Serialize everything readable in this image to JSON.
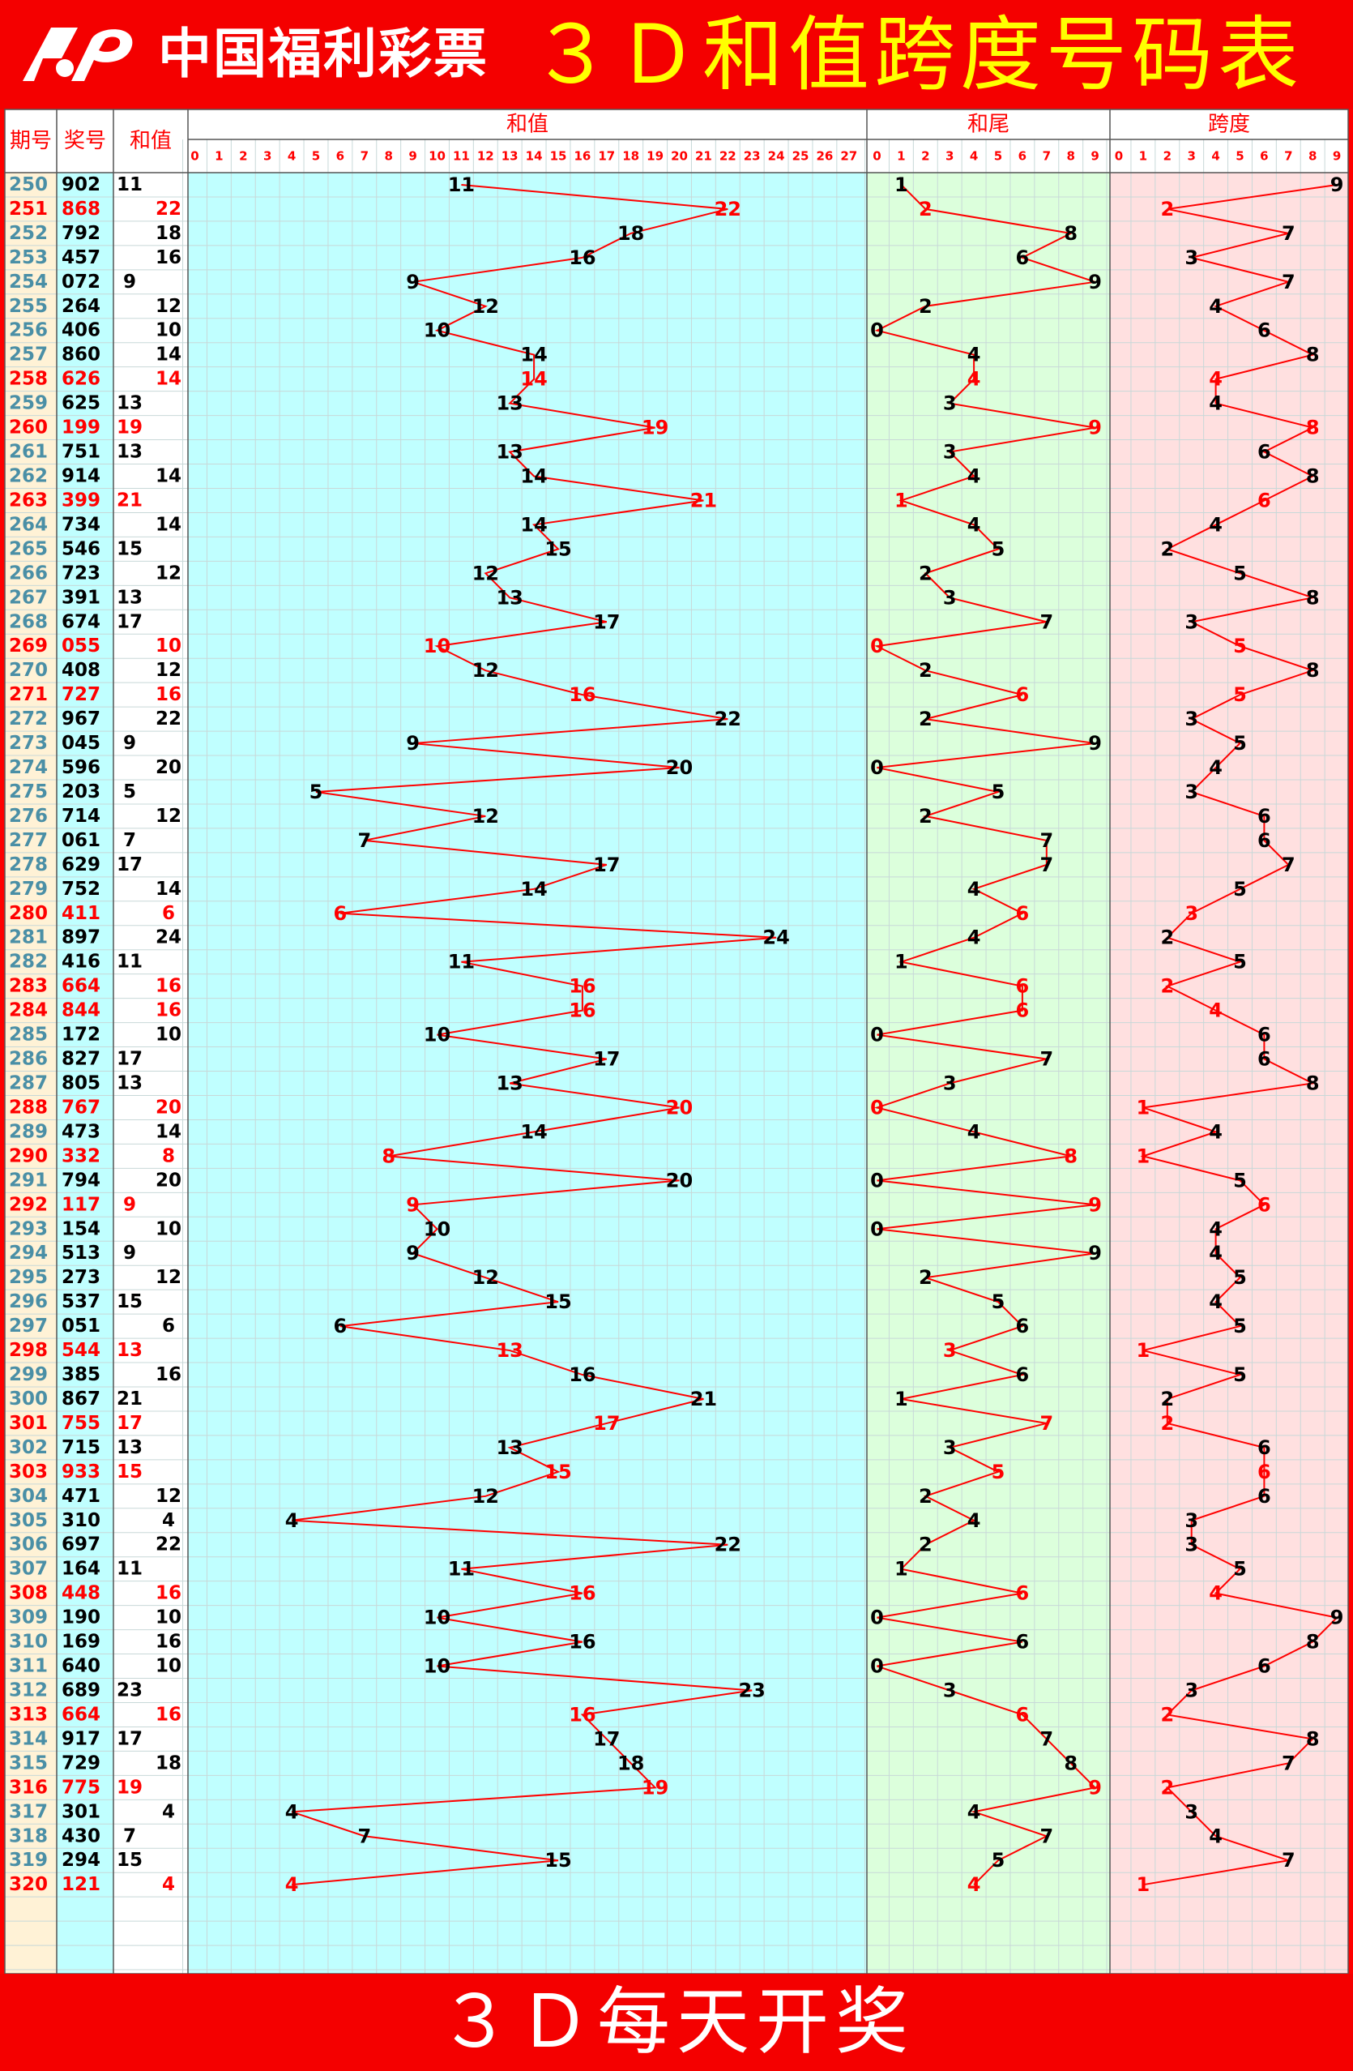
{
  "header": {
    "brand": "中国福利彩票",
    "title": "３Ｄ和值跨度号码表"
  },
  "footer": {
    "text": "３Ｄ每天开奖"
  },
  "columns": {
    "issue": "期号",
    "number": "奖号",
    "sum": "和值",
    "sum_section": "和值",
    "tail_section": "和尾",
    "span_section": "跨度"
  },
  "colors": {
    "highlight": "#ff0000",
    "normal": "#000000",
    "issue_text": "#4a8fa6",
    "sum_bg": "#c0ffff",
    "tail_bg": "#dcffdc",
    "span_bg": "#ffe0e0",
    "issue_bg": "#fff2d6",
    "line": "#ff0000"
  },
  "chart_data": {
    "type": "table",
    "sum_axis": [
      "0",
      "1",
      "2",
      "3",
      "4",
      "5",
      "6",
      "7",
      "8",
      "9",
      "10",
      "11",
      "12",
      "13",
      "14",
      "15",
      "16",
      "17",
      "18",
      "19",
      "20",
      "21",
      "22",
      "23",
      "24",
      "25",
      "26",
      "27"
    ],
    "tail_axis": [
      "0",
      "1",
      "2",
      "3",
      "4",
      "5",
      "6",
      "7",
      "8",
      "9"
    ],
    "span_axis": [
      "0",
      "1",
      "2",
      "3",
      "4",
      "5",
      "6",
      "7",
      "8",
      "9"
    ],
    "rows": [
      {
        "issue": "250",
        "number": "902",
        "sum": 11,
        "tail": 1,
        "span": 9,
        "highlight": false
      },
      {
        "issue": "251",
        "number": "868",
        "sum": 22,
        "tail": 2,
        "span": 2,
        "highlight": true
      },
      {
        "issue": "252",
        "number": "792",
        "sum": 18,
        "tail": 8,
        "span": 7,
        "highlight": false
      },
      {
        "issue": "253",
        "number": "457",
        "sum": 16,
        "tail": 6,
        "span": 3,
        "highlight": false
      },
      {
        "issue": "254",
        "number": "072",
        "sum": 9,
        "tail": 9,
        "span": 7,
        "highlight": false
      },
      {
        "issue": "255",
        "number": "264",
        "sum": 12,
        "tail": 2,
        "span": 4,
        "highlight": false
      },
      {
        "issue": "256",
        "number": "406",
        "sum": 10,
        "tail": 0,
        "span": 6,
        "highlight": false
      },
      {
        "issue": "257",
        "number": "860",
        "sum": 14,
        "tail": 4,
        "span": 8,
        "highlight": false
      },
      {
        "issue": "258",
        "number": "626",
        "sum": 14,
        "tail": 4,
        "span": 4,
        "highlight": true
      },
      {
        "issue": "259",
        "number": "625",
        "sum": 13,
        "tail": 3,
        "span": 4,
        "highlight": false
      },
      {
        "issue": "260",
        "number": "199",
        "sum": 19,
        "tail": 9,
        "span": 8,
        "highlight": true
      },
      {
        "issue": "261",
        "number": "751",
        "sum": 13,
        "tail": 3,
        "span": 6,
        "highlight": false
      },
      {
        "issue": "262",
        "number": "914",
        "sum": 14,
        "tail": 4,
        "span": 8,
        "highlight": false
      },
      {
        "issue": "263",
        "number": "399",
        "sum": 21,
        "tail": 1,
        "span": 6,
        "highlight": true
      },
      {
        "issue": "264",
        "number": "734",
        "sum": 14,
        "tail": 4,
        "span": 4,
        "highlight": false
      },
      {
        "issue": "265",
        "number": "546",
        "sum": 15,
        "tail": 5,
        "span": 2,
        "highlight": false
      },
      {
        "issue": "266",
        "number": "723",
        "sum": 12,
        "tail": 2,
        "span": 5,
        "highlight": false
      },
      {
        "issue": "267",
        "number": "391",
        "sum": 13,
        "tail": 3,
        "span": 8,
        "highlight": false
      },
      {
        "issue": "268",
        "number": "674",
        "sum": 17,
        "tail": 7,
        "span": 3,
        "highlight": false
      },
      {
        "issue": "269",
        "number": "055",
        "sum": 10,
        "tail": 0,
        "span": 5,
        "highlight": true
      },
      {
        "issue": "270",
        "number": "408",
        "sum": 12,
        "tail": 2,
        "span": 8,
        "highlight": false
      },
      {
        "issue": "271",
        "number": "727",
        "sum": 16,
        "tail": 6,
        "span": 5,
        "highlight": true
      },
      {
        "issue": "272",
        "number": "967",
        "sum": 22,
        "tail": 2,
        "span": 3,
        "highlight": false
      },
      {
        "issue": "273",
        "number": "045",
        "sum": 9,
        "tail": 9,
        "span": 5,
        "highlight": false
      },
      {
        "issue": "274",
        "number": "596",
        "sum": 20,
        "tail": 0,
        "span": 4,
        "highlight": false
      },
      {
        "issue": "275",
        "number": "203",
        "sum": 5,
        "tail": 5,
        "span": 3,
        "highlight": false
      },
      {
        "issue": "276",
        "number": "714",
        "sum": 12,
        "tail": 2,
        "span": 6,
        "highlight": false
      },
      {
        "issue": "277",
        "number": "061",
        "sum": 7,
        "tail": 7,
        "span": 6,
        "highlight": false
      },
      {
        "issue": "278",
        "number": "629",
        "sum": 17,
        "tail": 7,
        "span": 7,
        "highlight": false
      },
      {
        "issue": "279",
        "number": "752",
        "sum": 14,
        "tail": 4,
        "span": 5,
        "highlight": false
      },
      {
        "issue": "280",
        "number": "411",
        "sum": 6,
        "tail": 6,
        "span": 3,
        "highlight": true
      },
      {
        "issue": "281",
        "number": "897",
        "sum": 24,
        "tail": 4,
        "span": 2,
        "highlight": false
      },
      {
        "issue": "282",
        "number": "416",
        "sum": 11,
        "tail": 1,
        "span": 5,
        "highlight": false
      },
      {
        "issue": "283",
        "number": "664",
        "sum": 16,
        "tail": 6,
        "span": 2,
        "highlight": true
      },
      {
        "issue": "284",
        "number": "844",
        "sum": 16,
        "tail": 6,
        "span": 4,
        "highlight": true
      },
      {
        "issue": "285",
        "number": "172",
        "sum": 10,
        "tail": 0,
        "span": 6,
        "highlight": false
      },
      {
        "issue": "286",
        "number": "827",
        "sum": 17,
        "tail": 7,
        "span": 6,
        "highlight": false
      },
      {
        "issue": "287",
        "number": "805",
        "sum": 13,
        "tail": 3,
        "span": 8,
        "highlight": false
      },
      {
        "issue": "288",
        "number": "767",
        "sum": 20,
        "tail": 0,
        "span": 1,
        "highlight": true
      },
      {
        "issue": "289",
        "number": "473",
        "sum": 14,
        "tail": 4,
        "span": 4,
        "highlight": false
      },
      {
        "issue": "290",
        "number": "332",
        "sum": 8,
        "tail": 8,
        "span": 1,
        "highlight": true
      },
      {
        "issue": "291",
        "number": "794",
        "sum": 20,
        "tail": 0,
        "span": 5,
        "highlight": false
      },
      {
        "issue": "292",
        "number": "117",
        "sum": 9,
        "tail": 9,
        "span": 6,
        "highlight": true
      },
      {
        "issue": "293",
        "number": "154",
        "sum": 10,
        "tail": 0,
        "span": 4,
        "highlight": false
      },
      {
        "issue": "294",
        "number": "513",
        "sum": 9,
        "tail": 9,
        "span": 4,
        "highlight": false
      },
      {
        "issue": "295",
        "number": "273",
        "sum": 12,
        "tail": 2,
        "span": 5,
        "highlight": false
      },
      {
        "issue": "296",
        "number": "537",
        "sum": 15,
        "tail": 5,
        "span": 4,
        "highlight": false
      },
      {
        "issue": "297",
        "number": "051",
        "sum": 6,
        "tail": 6,
        "span": 5,
        "highlight": false
      },
      {
        "issue": "298",
        "number": "544",
        "sum": 13,
        "tail": 3,
        "span": 1,
        "highlight": true
      },
      {
        "issue": "299",
        "number": "385",
        "sum": 16,
        "tail": 6,
        "span": 5,
        "highlight": false
      },
      {
        "issue": "300",
        "number": "867",
        "sum": 21,
        "tail": 1,
        "span": 2,
        "highlight": false
      },
      {
        "issue": "301",
        "number": "755",
        "sum": 17,
        "tail": 7,
        "span": 2,
        "highlight": true
      },
      {
        "issue": "302",
        "number": "715",
        "sum": 13,
        "tail": 3,
        "span": 6,
        "highlight": false
      },
      {
        "issue": "303",
        "number": "933",
        "sum": 15,
        "tail": 5,
        "span": 6,
        "highlight": true
      },
      {
        "issue": "304",
        "number": "471",
        "sum": 12,
        "tail": 2,
        "span": 6,
        "highlight": false
      },
      {
        "issue": "305",
        "number": "310",
        "sum": 4,
        "tail": 4,
        "span": 3,
        "highlight": false
      },
      {
        "issue": "306",
        "number": "697",
        "sum": 22,
        "tail": 2,
        "span": 3,
        "highlight": false
      },
      {
        "issue": "307",
        "number": "164",
        "sum": 11,
        "tail": 1,
        "span": 5,
        "highlight": false
      },
      {
        "issue": "308",
        "number": "448",
        "sum": 16,
        "tail": 6,
        "span": 4,
        "highlight": true
      },
      {
        "issue": "309",
        "number": "190",
        "sum": 10,
        "tail": 0,
        "span": 9,
        "highlight": false
      },
      {
        "issue": "310",
        "number": "169",
        "sum": 16,
        "tail": 6,
        "span": 8,
        "highlight": false
      },
      {
        "issue": "311",
        "number": "640",
        "sum": 10,
        "tail": 0,
        "span": 6,
        "highlight": false
      },
      {
        "issue": "312",
        "number": "689",
        "sum": 23,
        "tail": 3,
        "span": 3,
        "highlight": false
      },
      {
        "issue": "313",
        "number": "664",
        "sum": 16,
        "tail": 6,
        "span": 2,
        "highlight": true
      },
      {
        "issue": "314",
        "number": "917",
        "sum": 17,
        "tail": 7,
        "span": 8,
        "highlight": false
      },
      {
        "issue": "315",
        "number": "729",
        "sum": 18,
        "tail": 8,
        "span": 7,
        "highlight": false
      },
      {
        "issue": "316",
        "number": "775",
        "sum": 19,
        "tail": 9,
        "span": 2,
        "highlight": true
      },
      {
        "issue": "317",
        "number": "301",
        "sum": 4,
        "tail": 4,
        "span": 3,
        "highlight": false
      },
      {
        "issue": "318",
        "number": "430",
        "sum": 7,
        "tail": 7,
        "span": 4,
        "highlight": false
      },
      {
        "issue": "319",
        "number": "294",
        "sum": 15,
        "tail": 5,
        "span": 7,
        "highlight": false
      },
      {
        "issue": "320",
        "number": "121",
        "sum": 4,
        "tail": 4,
        "span": 1,
        "highlight": true
      }
    ]
  }
}
